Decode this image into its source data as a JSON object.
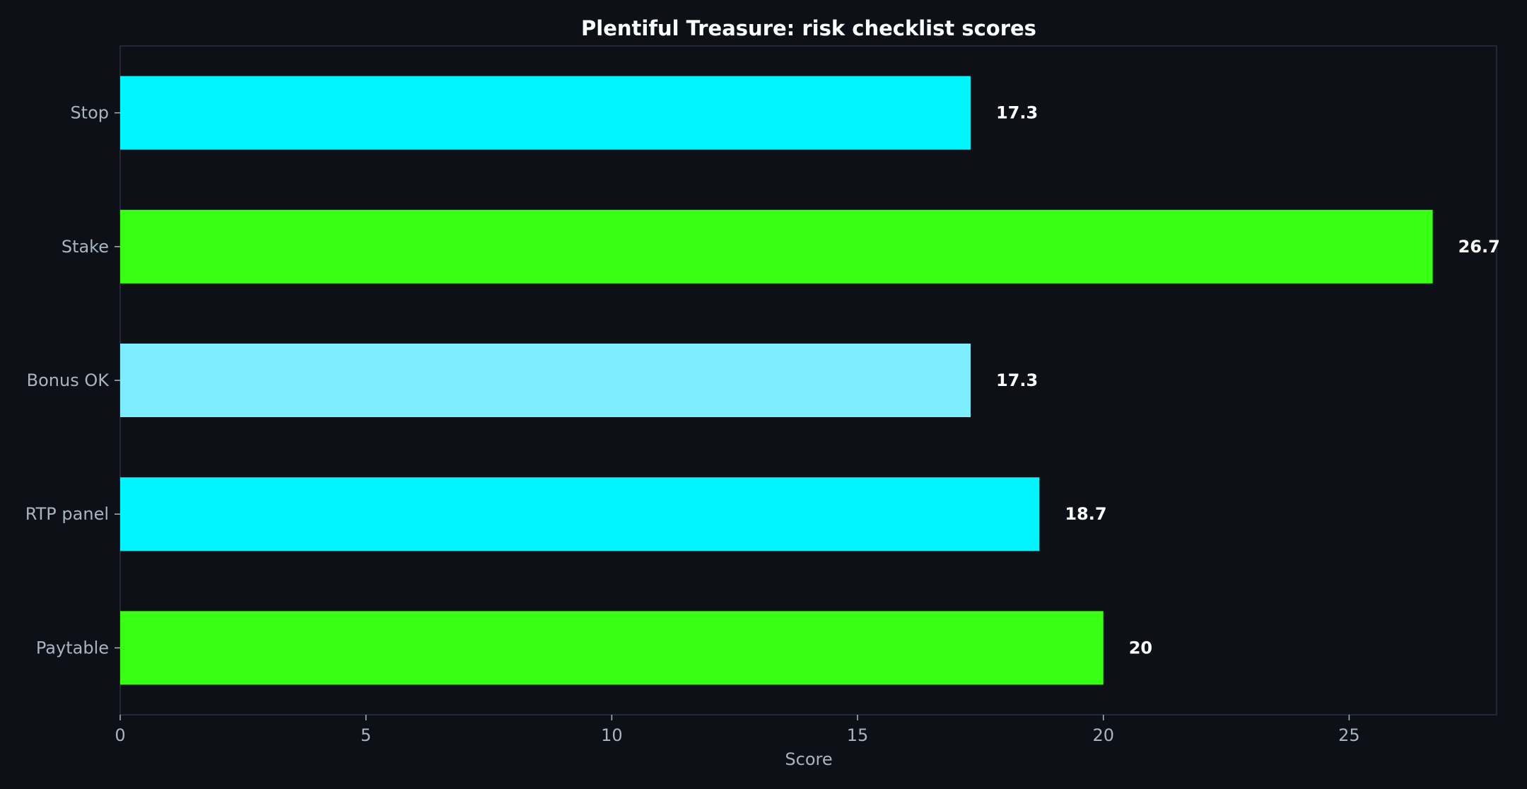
{
  "chart_data": {
    "type": "bar",
    "orientation": "horizontal",
    "title": "Plentiful Treasure: risk checklist scores",
    "xlabel": "Score",
    "ylabel": "",
    "categories": [
      "Stop",
      "Stake",
      "Bonus OK",
      "RTP panel",
      "Paytable"
    ],
    "values": [
      17.3,
      26.7,
      17.3,
      18.7,
      20
    ],
    "value_labels": [
      "17.3",
      "26.7",
      "17.3",
      "18.7",
      "20"
    ],
    "bar_colors": [
      "#00f5ff",
      "#39ff14",
      "#7eeeff",
      "#00f5ff",
      "#39ff14"
    ],
    "xlim": [
      0,
      28
    ],
    "xticks": [
      0,
      5,
      10,
      15,
      20,
      25
    ],
    "xtick_labels": [
      "0",
      "5",
      "10",
      "15",
      "20",
      "25"
    ],
    "grid": false,
    "legend": "none"
  },
  "theme": {
    "background": "#0d1117",
    "axes_border": "#2a2f45",
    "tick_text": "#a9b4c2",
    "title_text": "#ffffff"
  }
}
